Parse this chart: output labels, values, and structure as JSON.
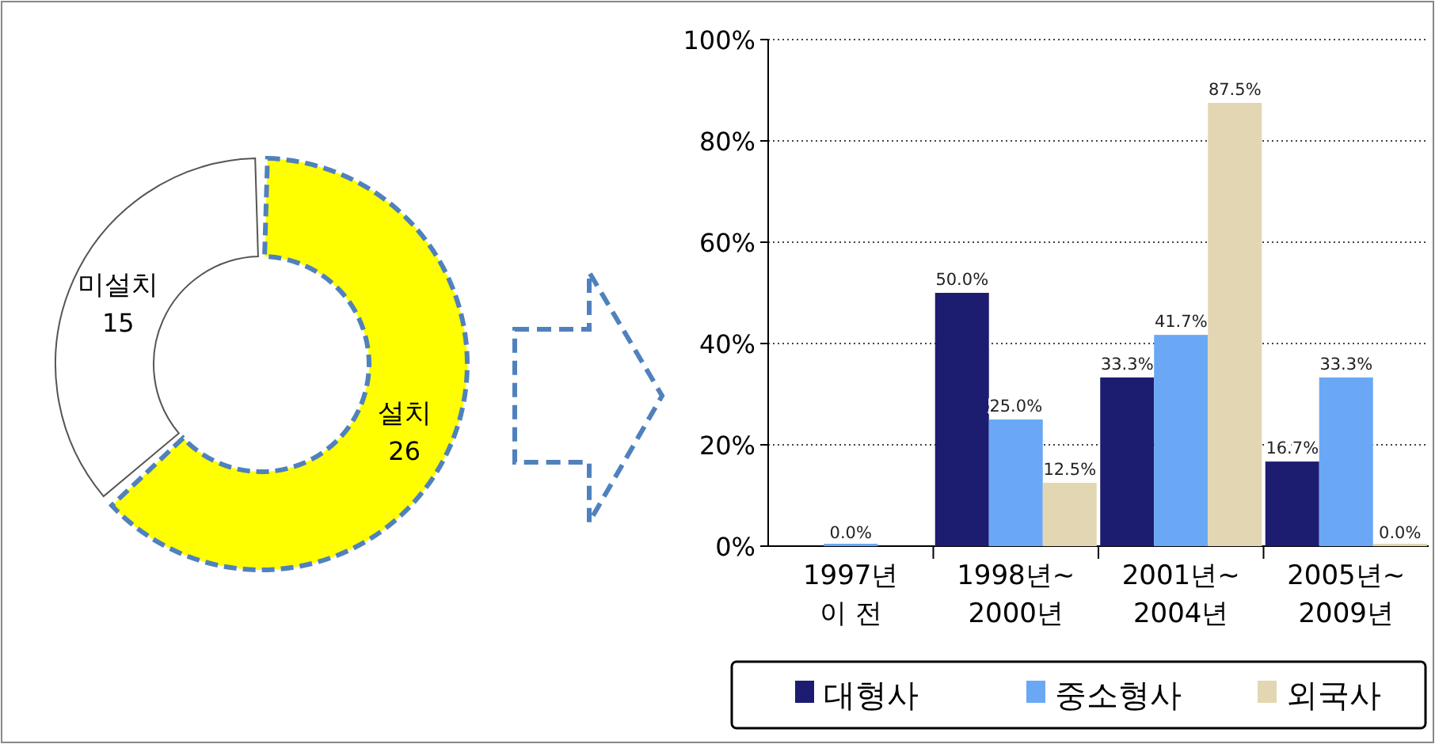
{
  "chart_data": [
    {
      "type": "donut",
      "categories": [
        "설치",
        "미설치"
      ],
      "values": [
        26,
        15
      ],
      "colors": [
        "#ffff00",
        "#ffffff"
      ],
      "data_labels": true
    },
    {
      "type": "bar",
      "categories": [
        "1997년 이 전",
        "1998년~ 2000년",
        "2001년~ 2004년",
        "2005년~ 2009년"
      ],
      "series": [
        {
          "name": "대형사",
          "color": "#1c1c70",
          "values": [
            null,
            50.0,
            33.3,
            16.7
          ],
          "value_labels": [
            null,
            "50.0%",
            "33.3%",
            "16.7%"
          ]
        },
        {
          "name": "중소형사",
          "color": "#6aa8f5",
          "values": [
            0.0,
            25.0,
            41.7,
            33.3
          ],
          "value_labels": [
            "0.0%",
            "25.0%",
            "41.7%",
            "33.3%"
          ]
        },
        {
          "name": "외국사",
          "color": "#e3d6b2",
          "values": [
            null,
            12.5,
            87.5,
            0.0
          ],
          "value_labels": [
            null,
            "12.5%",
            "87.5%",
            "0.0%"
          ]
        }
      ],
      "ylim": [
        0,
        100
      ],
      "yticks": [
        {
          "value": 0,
          "label": "0%"
        },
        {
          "value": 20,
          "label": "20%"
        },
        {
          "value": 40,
          "label": "40%"
        },
        {
          "value": 60,
          "label": "60%"
        },
        {
          "value": 80,
          "label": "80%"
        },
        {
          "value": 100,
          "label": "100%"
        }
      ],
      "grid": "y",
      "legend": "bottom"
    }
  ]
}
